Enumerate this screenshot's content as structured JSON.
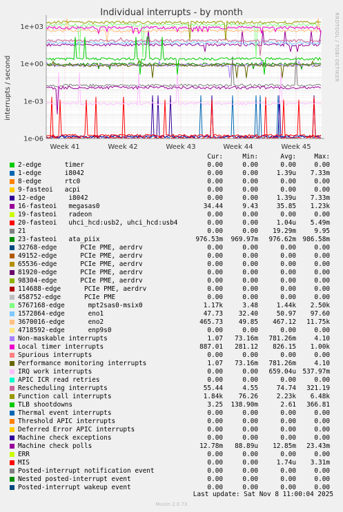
{
  "chart_data": {
    "type": "line",
    "title": "Individual interrupts - by month",
    "ylabel": "interrupts / second",
    "y_scale": "log",
    "ylim": [
      1e-06,
      5000
    ],
    "y_ticks": [
      "1e+03",
      "1e+00",
      "1e-03",
      "1e-06"
    ],
    "x_ticks": [
      "Week 41",
      "Week 42",
      "Week 43",
      "Week 44",
      "Week 45"
    ],
    "side_label": "RRDTOOL / TOBI OETIKER",
    "columns": [
      "Cur:",
      "Min:",
      "Avg:",
      "Max:"
    ],
    "series": [
      {
        "name": "2-edge      timer",
        "color": "#00cc00",
        "cur": "0.00",
        "min": "0.00",
        "avg": "0.00",
        "max": "0.00"
      },
      {
        "name": "1-edge      i8042",
        "color": "#0066b3",
        "cur": "0.00",
        "min": "0.00",
        "avg": "1.39u",
        "max": "7.33m"
      },
      {
        "name": "8-edge      rtc0",
        "color": "#ff8000",
        "cur": "0.00",
        "min": "0.00",
        "avg": "0.00",
        "max": "0.00"
      },
      {
        "name": "9-fasteoi   acpi",
        "color": "#ffcc00",
        "cur": "0.00",
        "min": "0.00",
        "avg": "0.00",
        "max": "0.00"
      },
      {
        "name": "12-edge      i8042",
        "color": "#330099",
        "cur": "0.00",
        "min": "0.00",
        "avg": "1.39u",
        "max": "7.33m"
      },
      {
        "name": "16-fasteoi   megasas0",
        "color": "#990099",
        "cur": "34.44",
        "min": "9.43",
        "avg": "35.85",
        "max": "1.23k"
      },
      {
        "name": "19-fasteoi   radeon",
        "color": "#ccff00",
        "cur": "0.00",
        "min": "0.00",
        "avg": "0.00",
        "max": "0.00"
      },
      {
        "name": "20-fasteoi   uhci_hcd:usb2, uhci_hcd:usb4",
        "color": "#ff0000",
        "cur": "0.00",
        "min": "0.00",
        "avg": "1.04u",
        "max": "5.49m"
      },
      {
        "name": "21",
        "color": "#808080",
        "cur": "0.00",
        "min": "0.00",
        "avg": "19.29m",
        "max": "9.95"
      },
      {
        "name": "23-fasteoi   ata_piix",
        "color": "#008f00",
        "cur": "976.53m",
        "min": "969.97m",
        "avg": "976.62m",
        "max": "986.58m"
      },
      {
        "name": "32768-edge      PCIe PME, aerdrv",
        "color": "#00487d",
        "cur": "0.00",
        "min": "0.00",
        "avg": "0.00",
        "max": "0.00"
      },
      {
        "name": "49152-edge      PCIe PME, aerdrv",
        "color": "#b35a00",
        "cur": "0.00",
        "min": "0.00",
        "avg": "0.00",
        "max": "0.00"
      },
      {
        "name": "65536-edge      PCIe PME, aerdrv",
        "color": "#b38f00",
        "cur": "0.00",
        "min": "0.00",
        "avg": "0.00",
        "max": "0.00"
      },
      {
        "name": "81920-edge      PCIe PME, aerdrv",
        "color": "#6b006b",
        "cur": "0.00",
        "min": "0.00",
        "avg": "0.00",
        "max": "0.00"
      },
      {
        "name": "98304-edge      PCIe PME, aerdrv",
        "color": "#8fb300",
        "cur": "0.00",
        "min": "0.00",
        "avg": "0.00",
        "max": "0.00"
      },
      {
        "name": "114688-edge      PCIe PME, aerdrv",
        "color": "#b30000",
        "cur": "0.00",
        "min": "0.00",
        "avg": "0.00",
        "max": "0.00"
      },
      {
        "name": "458752-edge      PCIe PME",
        "color": "#bebebe",
        "cur": "0.00",
        "min": "0.00",
        "avg": "0.00",
        "max": "0.00"
      },
      {
        "name": "5767168-edge      mpt2sas0-msix0",
        "color": "#80ff80",
        "cur": "1.17k",
        "min": "3.48",
        "avg": "1.44k",
        "max": "2.50k"
      },
      {
        "name": "1572864-edge      eno1",
        "color": "#80c9ff",
        "cur": "47.73",
        "min": "32.40",
        "avg": "50.97",
        "max": "97.60"
      },
      {
        "name": "3670016-edge      eno2",
        "color": "#ffc080",
        "cur": "465.73",
        "min": "49.85",
        "avg": "467.12",
        "max": "11.75k"
      },
      {
        "name": "4718592-edge      enp9s0",
        "color": "#ffe680",
        "cur": "0.00",
        "min": "0.00",
        "avg": "0.00",
        "max": "0.00"
      },
      {
        "name": "Non-maskable interrupts",
        "color": "#aa80ff",
        "cur": "1.07",
        "min": "73.16m",
        "avg": "781.26m",
        "max": "4.10"
      },
      {
        "name": "Local timer interrupts",
        "color": "#ee00cc",
        "cur": "887.01",
        "min": "281.12",
        "avg": "826.15",
        "max": "1.00k"
      },
      {
        "name": "Spurious interrupts",
        "color": "#ff8080",
        "cur": "0.00",
        "min": "0.00",
        "avg": "0.00",
        "max": "0.00"
      },
      {
        "name": "Performance monitoring interrupts",
        "color": "#666600",
        "cur": "1.07",
        "min": "73.16m",
        "avg": "781.26m",
        "max": "4.10"
      },
      {
        "name": "IRQ work interrupts",
        "color": "#ffbfff",
        "cur": "0.00",
        "min": "0.00",
        "avg": "659.04u",
        "max": "537.97m"
      },
      {
        "name": "APIC ICR read retries",
        "color": "#00ffcc",
        "cur": "0.00",
        "min": "0.00",
        "avg": "0.00",
        "max": "0.00"
      },
      {
        "name": "Rescheduling interrupts",
        "color": "#cc6699",
        "cur": "55.44",
        "min": "4.55",
        "avg": "74.74",
        "max": "321.19"
      },
      {
        "name": "Function call interrupts",
        "color": "#999900",
        "cur": "1.84k",
        "min": "76.26",
        "avg": "2.23k",
        "max": "6.48k"
      },
      {
        "name": "TLB shootdowns",
        "color": "#00cc00",
        "cur": "3.25",
        "min": "138.90m",
        "avg": "2.61",
        "max": "366.81"
      },
      {
        "name": "Thermal event interrupts",
        "color": "#0066b3",
        "cur": "0.00",
        "min": "0.00",
        "avg": "0.00",
        "max": "0.00"
      },
      {
        "name": "Threshold APIC interrupts",
        "color": "#ff8000",
        "cur": "0.00",
        "min": "0.00",
        "avg": "0.00",
        "max": "0.00"
      },
      {
        "name": "Deferred Error APIC interrupts",
        "color": "#ffcc00",
        "cur": "0.00",
        "min": "0.00",
        "avg": "0.00",
        "max": "0.00"
      },
      {
        "name": "Machine check exceptions",
        "color": "#330099",
        "cur": "0.00",
        "min": "0.00",
        "avg": "0.00",
        "max": "0.00"
      },
      {
        "name": "Machine check polls",
        "color": "#990099",
        "cur": "12.78m",
        "min": "88.89u",
        "avg": "12.85m",
        "max": "23.43m"
      },
      {
        "name": "ERR",
        "color": "#ccff00",
        "cur": "0.00",
        "min": "0.00",
        "avg": "0.00",
        "max": "0.00"
      },
      {
        "name": "MIS",
        "color": "#ff0000",
        "cur": "0.00",
        "min": "0.00",
        "avg": "1.74u",
        "max": "3.31m"
      },
      {
        "name": "Posted-interrupt notification event",
        "color": "#808080",
        "cur": "0.00",
        "min": "0.00",
        "avg": "0.00",
        "max": "0.00"
      },
      {
        "name": "Nested posted-interrupt event",
        "color": "#008f00",
        "cur": "0.00",
        "min": "0.00",
        "avg": "0.00",
        "max": "0.00"
      },
      {
        "name": "Posted-interrupt wakeup event",
        "color": "#00487d",
        "cur": "0.00",
        "min": "0.00",
        "avg": "0.00",
        "max": "0.00"
      }
    ]
  },
  "footer": {
    "last_update": "Last update:  Sat Nov  8 11:00:04 2025",
    "version": "Munin 2.0.73"
  }
}
